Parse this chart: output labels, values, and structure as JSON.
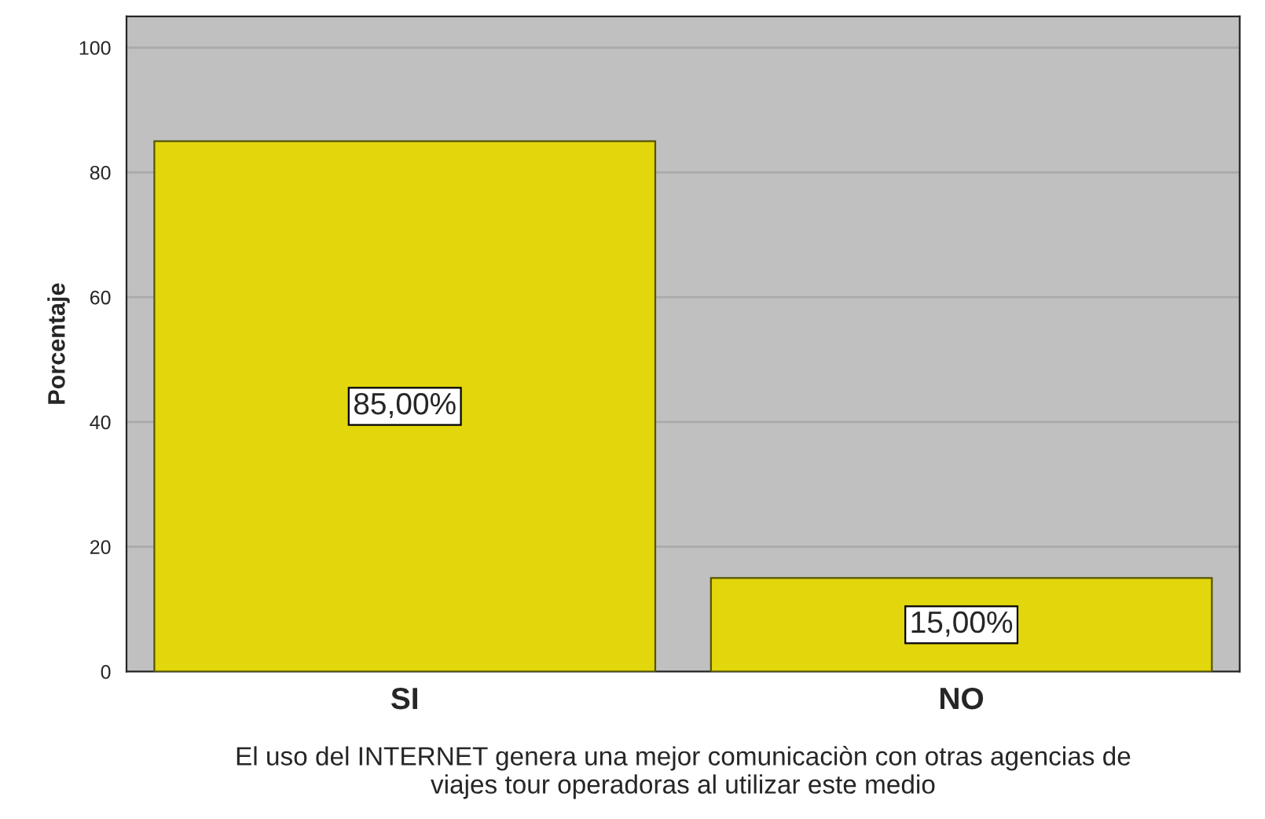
{
  "chart_data": {
    "type": "bar",
    "categories": [
      "SI",
      "NO"
    ],
    "values": [
      85,
      15
    ],
    "color": "#e2d60c",
    "value_labels": [
      "85,00%",
      "15,00%"
    ],
    "ylabel": "Porcentaje",
    "xlabel": "El uso del INTERNET genera una mejor comunicaciòn con otras agencias de\nviajes tour operadoras al utilizar este medio",
    "ylim": [
      0,
      105
    ],
    "yticks": [
      0,
      20,
      40,
      60,
      80,
      100
    ],
    "grid": "y"
  }
}
